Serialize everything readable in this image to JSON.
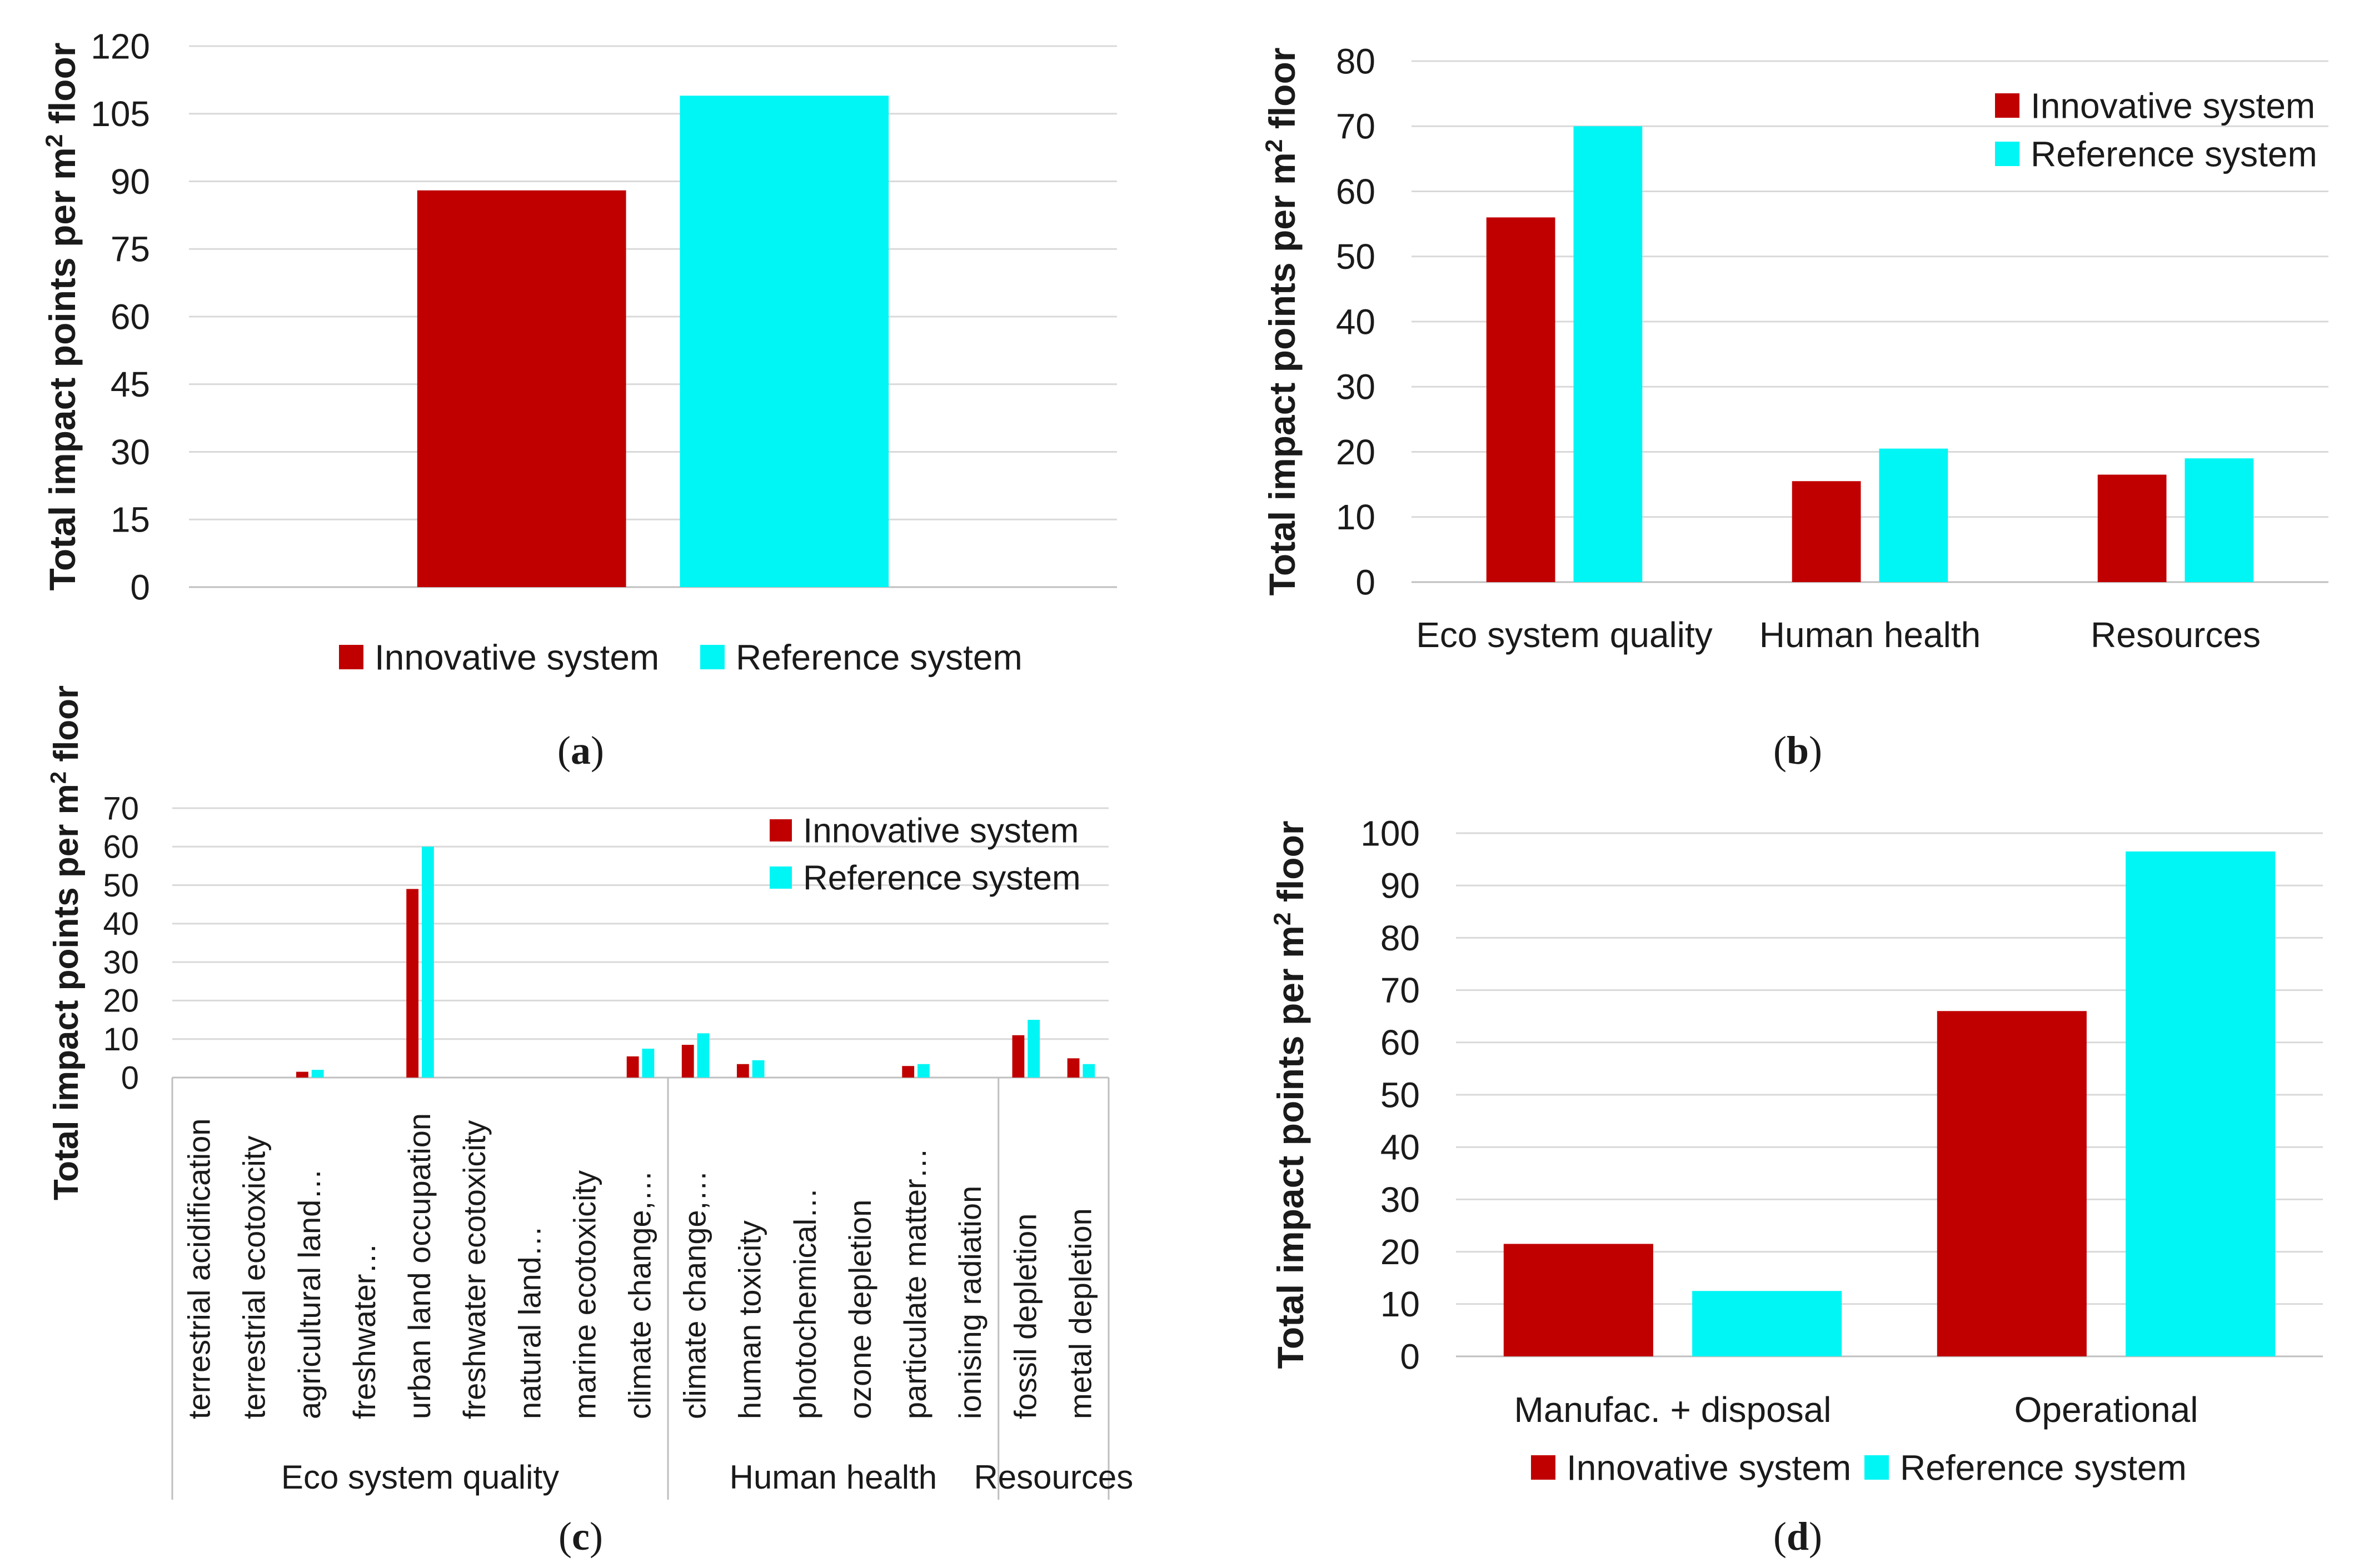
{
  "colors": {
    "innovative": "#c00000",
    "reference": "#00f5f5",
    "grid": "#d9d9d9",
    "axis": "#bfbfbf",
    "text": "#1a1a1a"
  },
  "chart_data": [
    {
      "id": "a",
      "caption_letter": "a",
      "type": "bar",
      "ylabel_main": "Total impact points per m",
      "ylabel_sup": "2",
      "ylabel_tail": " floor",
      "ylim": [
        0,
        120
      ],
      "yticks": [
        "0",
        "15",
        "30",
        "45",
        "60",
        "75",
        "90",
        "105",
        "120"
      ],
      "categories": [
        ""
      ],
      "legend": "bottom",
      "series": [
        {
          "name": "Innovative system",
          "values": [
            88
          ]
        },
        {
          "name": "Reference system",
          "values": [
            109
          ]
        }
      ]
    },
    {
      "id": "b",
      "caption_letter": "b",
      "type": "bar",
      "ylabel_main": "Total impact points per m",
      "ylabel_sup": "2",
      "ylabel_tail": " floor",
      "ylim": [
        0,
        80
      ],
      "yticks": [
        "0",
        "10",
        "20",
        "30",
        "40",
        "50",
        "60",
        "70",
        "80"
      ],
      "categories": [
        "Eco system quality",
        "Human health",
        "Resources"
      ],
      "legend": "top-right",
      "series": [
        {
          "name": "Innovative system",
          "values": [
            56,
            15.5,
            16.5
          ]
        },
        {
          "name": "Reference system",
          "values": [
            70,
            20.5,
            19
          ]
        }
      ]
    },
    {
      "id": "c",
      "caption_letter": "c",
      "type": "bar",
      "ylabel_main": "Total impact points per m",
      "ylabel_sup": "2",
      "ylabel_tail": " floor",
      "ylim": [
        0,
        70
      ],
      "yticks": [
        "0",
        "10",
        "20",
        "30",
        "40",
        "50",
        "60",
        "70"
      ],
      "categories": [
        "terrestrial acidification",
        "terrestrial ecotoxicity",
        "agricultural land…",
        "freshwater…",
        "urban land occupation",
        "freshwater ecotoxicity",
        "natural land…",
        "marine ecotoxicity",
        "climate change,…",
        "climate change,…",
        "human toxicity",
        "photochemical…",
        "ozone depletion",
        "particulate matter…",
        "ionising radiation",
        "fossil depletion",
        "metal depletion"
      ],
      "groups": [
        {
          "label": "Eco system quality",
          "count": 9
        },
        {
          "label": "Human health",
          "count": 6
        },
        {
          "label": "Resources",
          "count": 2
        }
      ],
      "legend": "top-right",
      "series": [
        {
          "name": "Innovative system",
          "values": [
            0,
            0,
            1.5,
            0,
            49,
            0,
            0,
            0,
            5.5,
            8.5,
            3.5,
            0,
            0,
            3,
            0,
            11,
            5
          ]
        },
        {
          "name": "Reference system",
          "values": [
            0,
            0,
            2,
            0,
            60,
            0,
            0,
            0,
            7.5,
            11.5,
            4.5,
            0,
            0,
            3.5,
            0,
            15,
            3.5
          ]
        }
      ]
    },
    {
      "id": "d",
      "caption_letter": "d",
      "type": "bar",
      "ylabel_main": "Total impact points per m",
      "ylabel_sup": "2",
      "ylabel_tail": " floor",
      "ylim": [
        0,
        100
      ],
      "yticks": [
        "0",
        "10",
        "20",
        "30",
        "40",
        "50",
        "60",
        "70",
        "80",
        "90",
        "100"
      ],
      "categories": [
        "Manufac. + disposal",
        "Operational"
      ],
      "legend": "bottom",
      "series": [
        {
          "name": "Innovative system",
          "values": [
            21.5,
            66
          ]
        },
        {
          "name": "Reference system",
          "values": [
            12.5,
            96.5
          ]
        }
      ]
    }
  ]
}
